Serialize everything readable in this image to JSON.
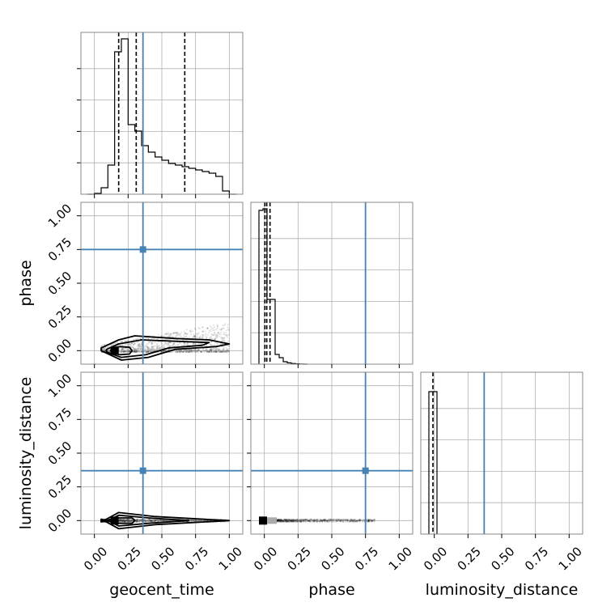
{
  "chart_data": {
    "type": "corner",
    "parameters": [
      "geocent_time",
      "phase",
      "luminosity_distance"
    ],
    "axis_range": [
      -0.1,
      1.1
    ],
    "tick_labels": [
      "0.00",
      "0.25",
      "0.50",
      "0.75",
      "1.00"
    ],
    "ticks": [
      0,
      0.25,
      0.5,
      0.75,
      1.0
    ],
    "grid": true,
    "colors": {
      "truth": "#4682b4",
      "hist": "#000000",
      "quantile": "#000000",
      "grid": "#b0b0b0",
      "samples": "#000000"
    },
    "truths": {
      "geocent_time": 0.36,
      "phase": 0.75,
      "luminosity_distance": 0.37
    },
    "histograms": [
      {
        "param": "geocent_time",
        "bin_edges": [
          -0.05,
          0.0,
          0.05,
          0.1,
          0.15,
          0.2,
          0.25,
          0.3,
          0.35,
          0.4,
          0.45,
          0.5,
          0.55,
          0.6,
          0.65,
          0.7,
          0.75,
          0.8,
          0.85,
          0.9,
          0.95,
          1.0,
          1.05
        ],
        "counts": [
          0.0,
          0.005,
          0.04,
          0.18,
          0.88,
          0.96,
          0.43,
          0.39,
          0.3,
          0.26,
          0.23,
          0.21,
          0.19,
          0.18,
          0.17,
          0.16,
          0.15,
          0.14,
          0.13,
          0.11,
          0.02,
          0.0
        ],
        "quantiles": [
          0.18,
          0.31,
          0.67
        ]
      },
      {
        "param": "phase",
        "bin_edges": [
          -0.04,
          -0.01,
          0.02,
          0.05,
          0.08,
          0.11,
          0.14,
          0.17,
          0.2,
          0.23,
          0.26,
          0.29,
          0.32
        ],
        "counts": [
          0.95,
          0.96,
          0.4,
          0.4,
          0.06,
          0.04,
          0.015,
          0.008,
          0.004,
          0.002,
          0.001,
          0.0
        ],
        "quantiles": [
          0.004,
          0.018,
          0.042
        ]
      },
      {
        "param": "luminosity_distance",
        "bin_edges": [
          -0.04,
          -0.02,
          0.0,
          0.02
        ],
        "counts": [
          0.88,
          0.88,
          0.88
        ],
        "quantiles": [
          -0.01
        ]
      }
    ],
    "scatter_panels": [
      {
        "x_param": "geocent_time",
        "y_param": "phase",
        "samples_x_range": [
          0.05,
          1.0
        ],
        "samples_y_spread": 0.22,
        "contours": [
          [
            [
              0.19,
              -0.03
            ],
            [
              0.26,
              -0.025
            ],
            [
              0.28,
              0.0
            ],
            [
              0.26,
              0.025
            ],
            [
              0.19,
              0.03
            ],
            [
              0.13,
              0.02
            ],
            [
              0.12,
              0.0
            ],
            [
              0.14,
              -0.02
            ]
          ],
          [
            [
              0.09,
              -0.01
            ],
            [
              0.2,
              -0.05
            ],
            [
              0.38,
              -0.03
            ],
            [
              0.55,
              0.02
            ],
            [
              0.8,
              0.04
            ],
            [
              0.85,
              0.06
            ],
            [
              0.6,
              0.07
            ],
            [
              0.35,
              0.08
            ],
            [
              0.18,
              0.05
            ],
            [
              0.09,
              0.01
            ]
          ],
          [
            [
              0.05,
              0.0
            ],
            [
              0.2,
              -0.07
            ],
            [
              0.4,
              -0.05
            ],
            [
              0.6,
              0.01
            ],
            [
              0.9,
              0.03
            ],
            [
              1.0,
              0.05
            ],
            [
              0.85,
              0.08
            ],
            [
              0.6,
              0.09
            ],
            [
              0.3,
              0.11
            ],
            [
              0.18,
              0.08
            ],
            [
              0.05,
              0.02
            ]
          ]
        ]
      },
      {
        "x_param": "geocent_time",
        "y_param": "luminosity_distance",
        "samples_x_range": [
          0.05,
          1.0
        ],
        "samples_y_spread": 0.0,
        "contours": [
          [
            [
              0.15,
              -0.02
            ],
            [
              0.28,
              -0.02
            ],
            [
              0.3,
              0.0
            ],
            [
              0.28,
              0.02
            ],
            [
              0.15,
              0.02
            ],
            [
              0.13,
              0.0
            ]
          ],
          [
            [
              0.1,
              0.0
            ],
            [
              0.18,
              -0.04
            ],
            [
              0.4,
              -0.02
            ],
            [
              0.7,
              0.0
            ],
            [
              0.4,
              0.02
            ],
            [
              0.18,
              0.04
            ]
          ],
          [
            [
              0.07,
              0.0
            ],
            [
              0.18,
              -0.06
            ],
            [
              0.45,
              -0.03
            ],
            [
              1.0,
              0.0
            ],
            [
              0.45,
              0.03
            ],
            [
              0.18,
              0.06
            ]
          ]
        ]
      },
      {
        "x_param": "phase",
        "y_param": "luminosity_distance",
        "samples_x_range": [
          -0.02,
          0.82
        ],
        "samples_y_spread": 0.0,
        "contours": []
      }
    ]
  }
}
